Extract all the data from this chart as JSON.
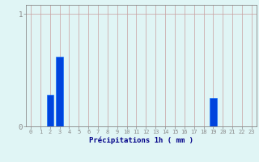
{
  "hours": [
    0,
    1,
    2,
    3,
    4,
    5,
    6,
    7,
    8,
    9,
    10,
    11,
    12,
    13,
    14,
    15,
    16,
    17,
    18,
    19,
    20,
    21,
    22,
    23
  ],
  "values": [
    0,
    0,
    0.28,
    0.62,
    0,
    0,
    0,
    0,
    0,
    0,
    0,
    0,
    0,
    0,
    0,
    0,
    0,
    0,
    0,
    0.25,
    0,
    0,
    0,
    0
  ],
  "bar_color": "#0044dd",
  "bar_edge_color": "#0066ff",
  "background_color": "#e0f5f5",
  "grid_color": "#c8a0a0",
  "axis_color": "#888888",
  "text_color": "#000088",
  "xlabel": "Précipitations 1h ( mm )",
  "ylim": [
    0,
    1.08
  ],
  "yticks": [
    0,
    1
  ],
  "xlim": [
    -0.5,
    23.5
  ]
}
